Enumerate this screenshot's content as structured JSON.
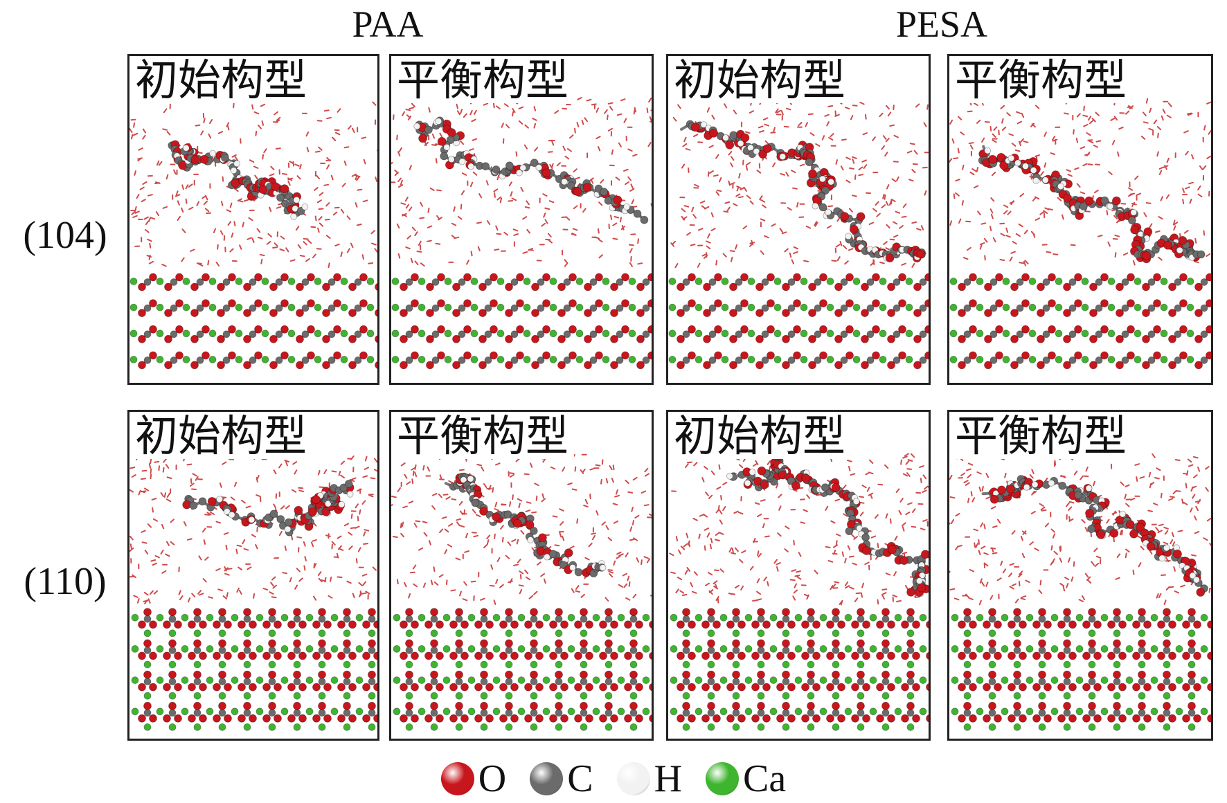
{
  "column_headers": [
    "PAA",
    "PESA"
  ],
  "row_labels": [
    "(104)",
    "(110)"
  ],
  "panel_labels": {
    "initial": "初始构型",
    "equilibrium": "平衡构型"
  },
  "legend": [
    {
      "symbol": "O",
      "color": "#c8161d"
    },
    {
      "symbol": "C",
      "color": "#6b6b6b"
    },
    {
      "symbol": "H",
      "color": "#f2f2f2"
    },
    {
      "symbol": "Ca",
      "color": "#3fb52f"
    }
  ],
  "colors": {
    "oxygen": "#c8161d",
    "carbon": "#6b6b6b",
    "hydrogen": "#f2f2f2",
    "calcium": "#3fb52f",
    "water": "#d04a4a"
  }
}
